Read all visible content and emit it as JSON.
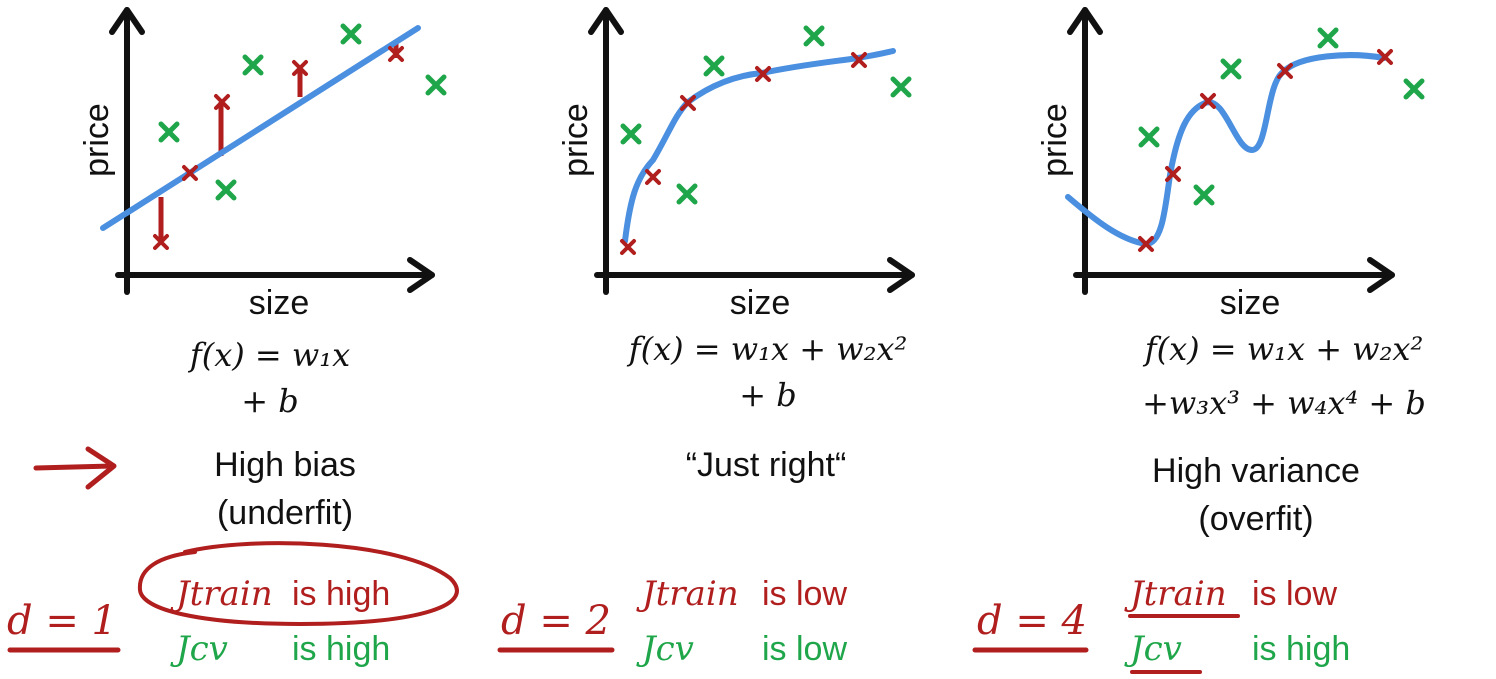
{
  "panels": [
    {
      "ylabel": "price",
      "xlabel": "size",
      "formula_line1": "f(x) = w₁x",
      "formula_line2": "+ b",
      "title_line1": "High bias",
      "title_line2": "(underfit)",
      "degree": "d = 1",
      "j_train_label": "Jtrain",
      "j_train_status": "is high",
      "j_cv_label": "Jcv",
      "j_cv_status": "is high"
    },
    {
      "ylabel": "price",
      "xlabel": "size",
      "formula_line1": "f(x) = w₁x + w₂x²",
      "formula_line2": "+ b",
      "title_line1": "“Just right“",
      "title_line2": "",
      "degree": "d = 2",
      "j_train_label": "Jtrain",
      "j_train_status": "is low",
      "j_cv_label": "Jcv",
      "j_cv_status": "is low"
    },
    {
      "ylabel": "price",
      "xlabel": "size",
      "formula_line1": "f(x) = w₁x + w₂x²",
      "formula_line2": "+w₃x³ + w₄x⁴ + b",
      "title_line1": "High variance",
      "title_line2": "(overfit)",
      "degree": "d = 4",
      "j_train_label": "Jtrain",
      "j_train_status": "is low",
      "j_cv_label": "Jcv",
      "j_cv_status": "is high"
    }
  ],
  "colors": {
    "axes": "#111111",
    "fit_curve": "#4a8fe0",
    "train_marker": "#b01e1e",
    "cv_marker": "#1fa64a",
    "annotation": "#b01e1e"
  }
}
